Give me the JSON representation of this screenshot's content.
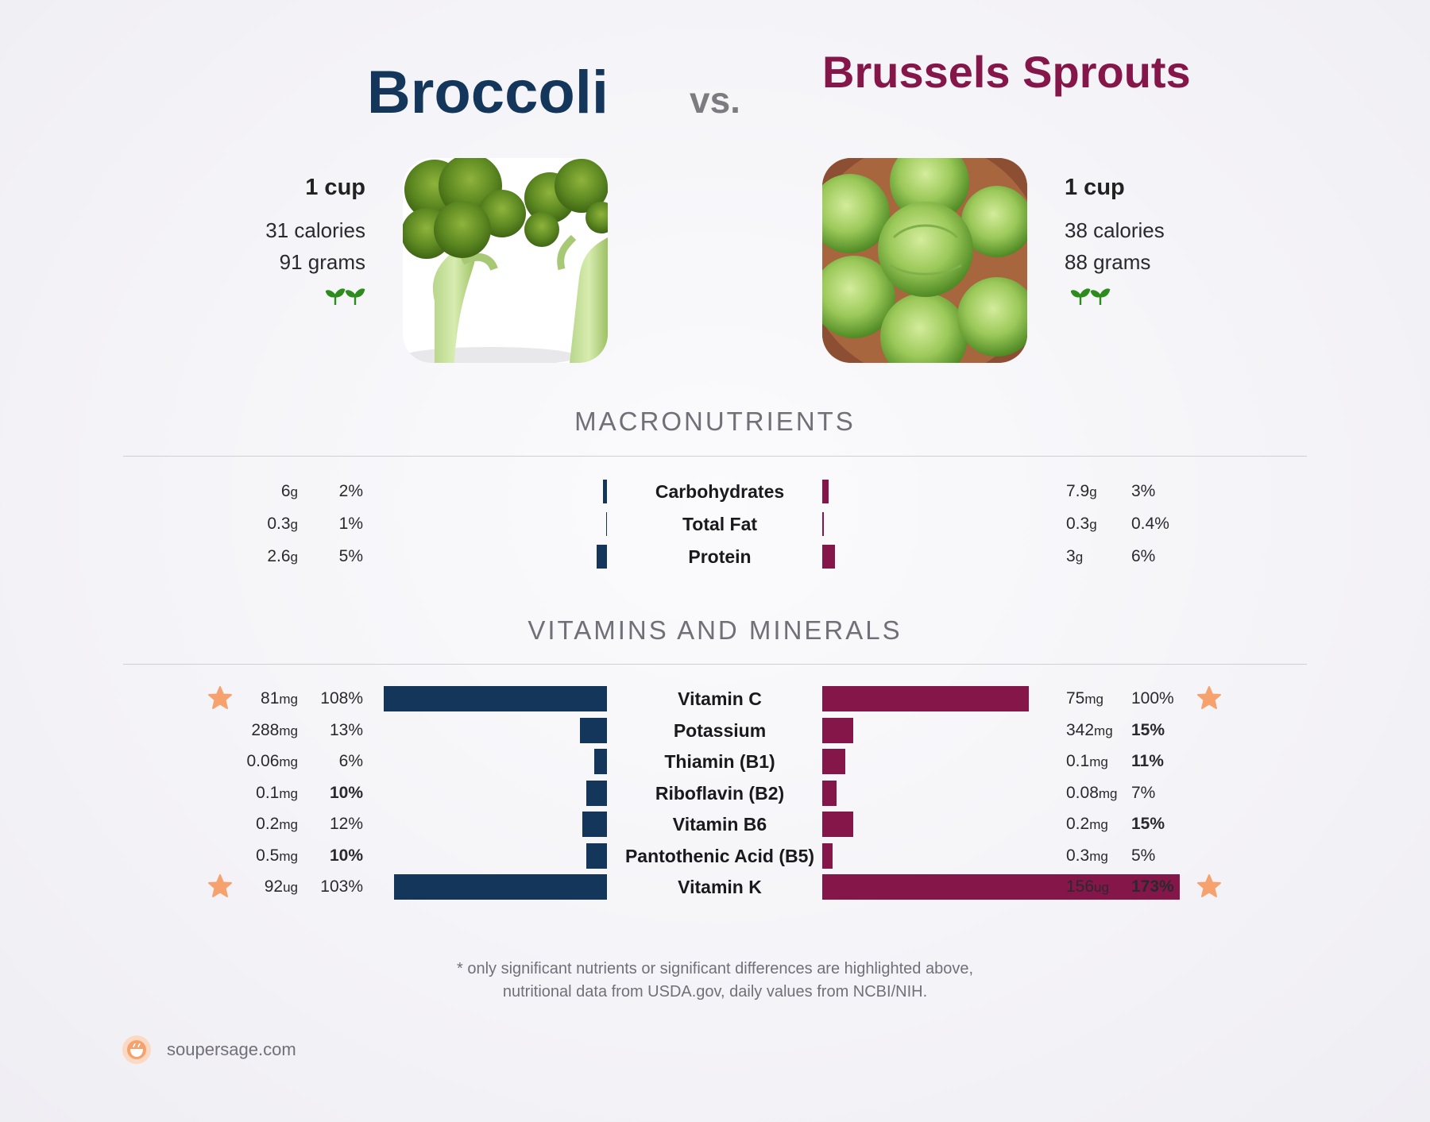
{
  "header": {
    "left_title": "Broccoli",
    "vs_label": "vs.",
    "right_title": "Brussels Sprouts"
  },
  "left_food": {
    "serving": "1 cup",
    "calories": "31 calories",
    "grams": "91 grams",
    "icon": "sprout-icon"
  },
  "right_food": {
    "serving": "1 cup",
    "calories": "38 calories",
    "grams": "88 grams",
    "icon": "sprout-icon"
  },
  "colors": {
    "left": "#14365b",
    "right": "#85164a",
    "star": "#f6a26e",
    "leaf": "#2e8b1e"
  },
  "sections": {
    "macros_title": "MACRONUTRIENTS",
    "vitamins_title": "VITAMINS AND MINERALS"
  },
  "chart_data": [
    {
      "type": "bar",
      "title": "MACRONUTRIENTS",
      "categories": [
        "Carbohydrates",
        "Total Fat",
        "Protein"
      ],
      "series": [
        {
          "name": "Broccoli",
          "amounts": [
            "6",
            "0.3",
            "2.6"
          ],
          "units": [
            "g",
            "g",
            "g"
          ],
          "percent_labels": [
            "2%",
            "1%",
            "5%"
          ],
          "values": [
            2,
            0.5,
            5
          ],
          "bold": [
            false,
            false,
            false
          ],
          "star": [
            false,
            false,
            false
          ]
        },
        {
          "name": "Brussels Sprouts",
          "amounts": [
            "7.9",
            "0.3",
            "3"
          ],
          "units": [
            "g",
            "g",
            "g"
          ],
          "percent_labels": [
            "3%",
            "0.4%",
            "6%"
          ],
          "values": [
            3,
            0.3,
            6
          ],
          "bold": [
            false,
            false,
            false
          ],
          "star": [
            false,
            false,
            false
          ]
        }
      ]
    },
    {
      "type": "bar",
      "title": "VITAMINS AND MINERALS",
      "categories": [
        "Vitamin C",
        "Potassium",
        "Thiamin (B1)",
        "Riboflavin (B2)",
        "Vitamin B6",
        "Pantothenic Acid (B5)",
        "Vitamin K"
      ],
      "series": [
        {
          "name": "Broccoli",
          "amounts": [
            "81",
            "288",
            "0.06",
            "0.1",
            "0.2",
            "0.5",
            "92"
          ],
          "units": [
            "mg",
            "mg",
            "mg",
            "mg",
            "mg",
            "mg",
            "ug"
          ],
          "percent_labels": [
            "108%",
            "13%",
            "6%",
            "10%",
            "12%",
            "10%",
            "103%"
          ],
          "values": [
            108,
            13,
            6,
            10,
            12,
            10,
            103
          ],
          "bold": [
            false,
            false,
            false,
            true,
            false,
            true,
            false
          ],
          "star": [
            true,
            false,
            false,
            false,
            false,
            false,
            true
          ]
        },
        {
          "name": "Brussels Sprouts",
          "amounts": [
            "75",
            "342",
            "0.1",
            "0.08",
            "0.2",
            "0.3",
            "156"
          ],
          "units": [
            "mg",
            "mg",
            "mg",
            "mg",
            "mg",
            "mg",
            "ug"
          ],
          "percent_labels": [
            "100%",
            "15%",
            "11%",
            "7%",
            "15%",
            "5%",
            "173%"
          ],
          "values": [
            100,
            15,
            11,
            7,
            15,
            5,
            173
          ],
          "bold": [
            false,
            true,
            true,
            false,
            true,
            false,
            true
          ],
          "star": [
            true,
            false,
            false,
            false,
            false,
            false,
            true
          ]
        }
      ]
    }
  ],
  "footer": {
    "note_line1": "* only significant nutrients or significant differences are highlighted above,",
    "note_line2": "nutritional data from USDA.gov, daily values from NCBI/NIH.",
    "brand": "soupersage.com"
  }
}
